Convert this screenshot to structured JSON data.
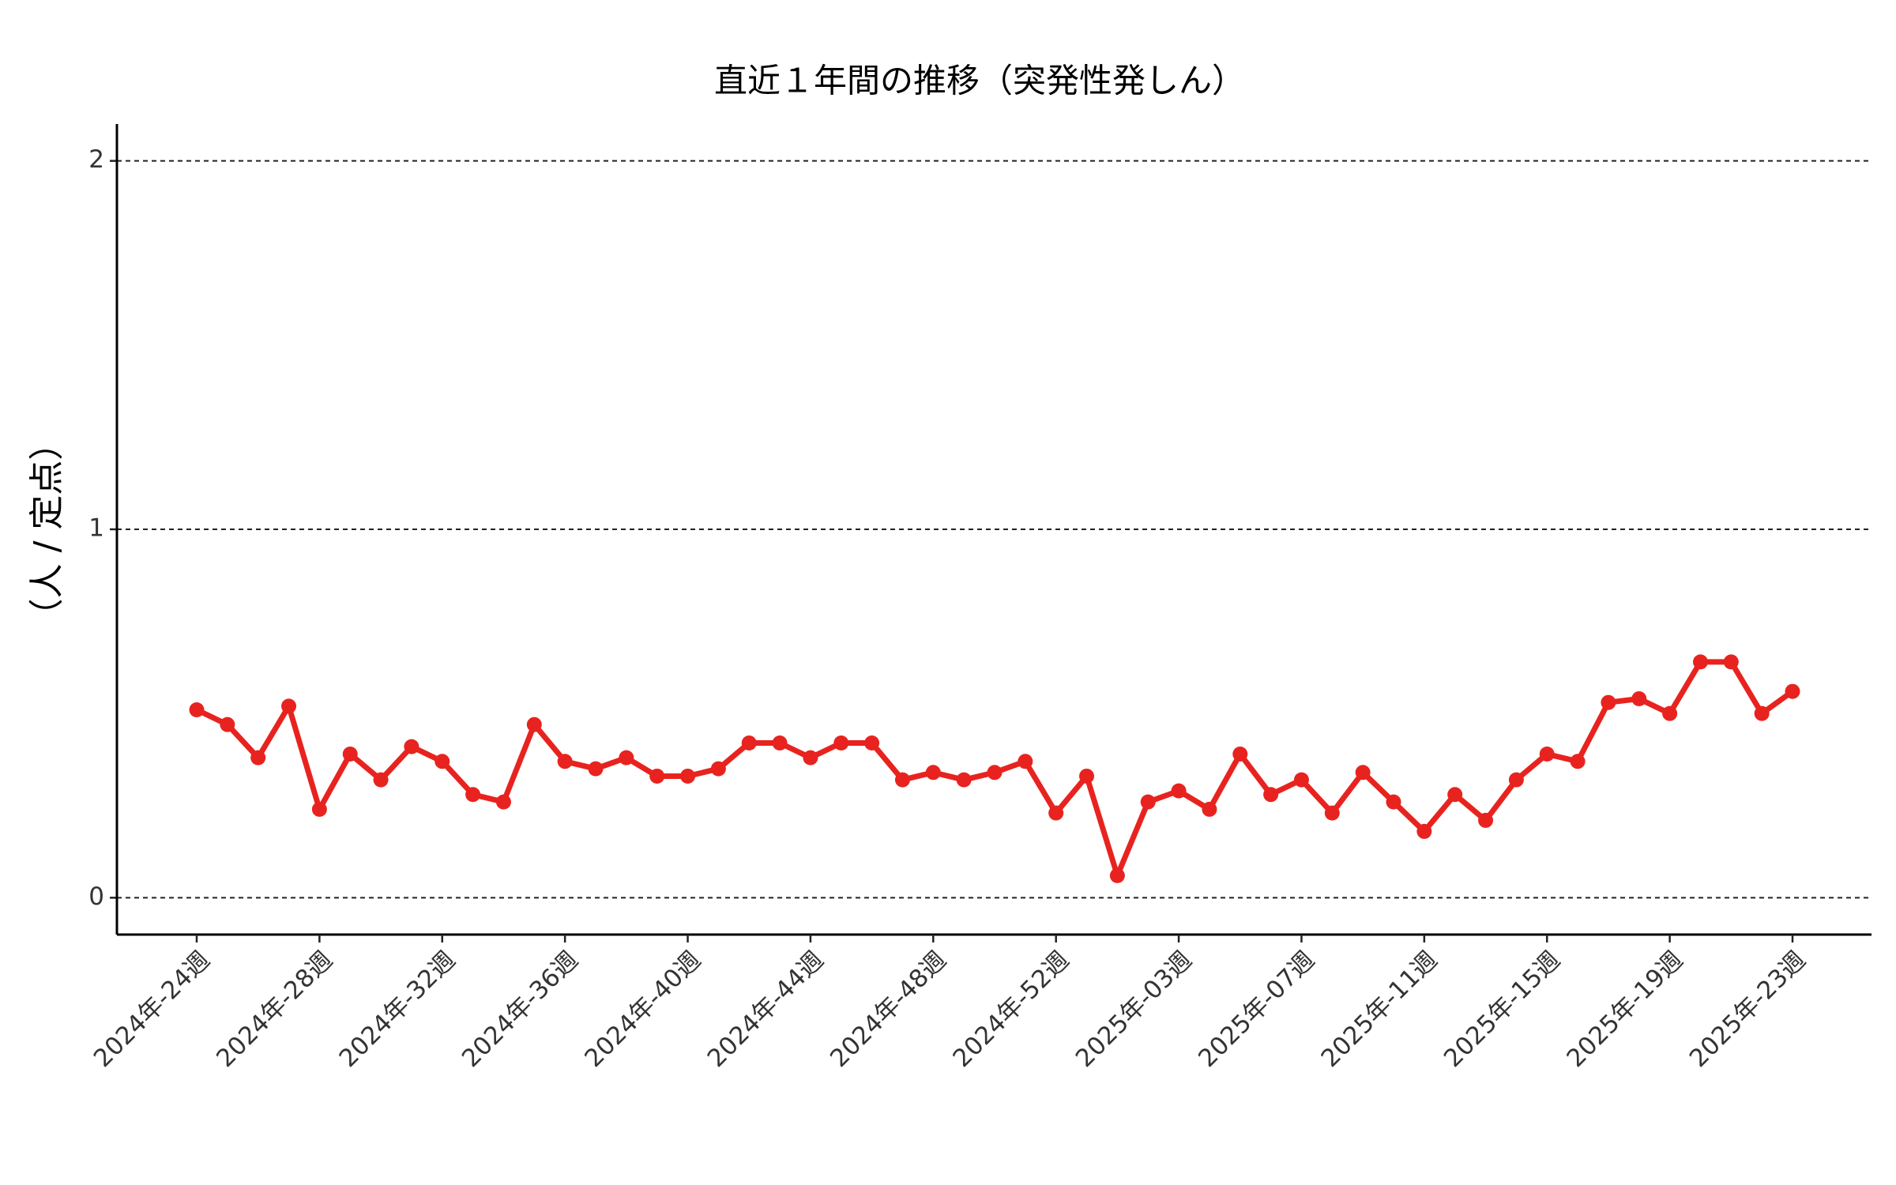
{
  "chart_data": {
    "type": "line",
    "title": "直近１年間の推移（突発性発しん）",
    "ylabel": "（人 / 定点）",
    "categories": [
      "2024年-24週",
      null,
      null,
      null,
      "2024年-28週",
      null,
      null,
      null,
      "2024年-32週",
      null,
      null,
      null,
      "2024年-36週",
      null,
      null,
      null,
      "2024年-40週",
      null,
      null,
      null,
      "2024年-44週",
      null,
      null,
      null,
      "2024年-48週",
      null,
      null,
      null,
      "2024年-52週",
      null,
      null,
      null,
      "2025年-03週",
      null,
      null,
      null,
      "2025年-07週",
      null,
      null,
      null,
      "2025年-11週",
      null,
      null,
      null,
      "2025年-15週",
      null,
      null,
      null,
      "2025年-19週",
      null,
      null,
      null,
      "2025年-23週"
    ],
    "values": [
      0.51,
      0.47,
      0.38,
      0.52,
      0.24,
      0.39,
      0.32,
      0.41,
      0.37,
      0.28,
      0.26,
      0.47,
      0.37,
      0.35,
      0.38,
      0.33,
      0.33,
      0.35,
      0.42,
      0.42,
      0.38,
      0.42,
      0.42,
      0.32,
      0.34,
      0.32,
      0.34,
      0.37,
      0.23,
      0.33,
      0.06,
      0.26,
      0.29,
      0.24,
      0.39,
      0.28,
      0.32,
      0.23,
      0.34,
      0.26,
      0.18,
      0.28,
      0.21,
      0.32,
      0.39,
      0.37,
      0.53,
      0.54,
      0.5,
      0.64,
      0.64,
      0.5,
      0.56
    ],
    "color": "#e8231f",
    "ylim": [
      -0.1,
      2.1
    ],
    "yticks": [
      0,
      1,
      2
    ],
    "grid": true
  }
}
